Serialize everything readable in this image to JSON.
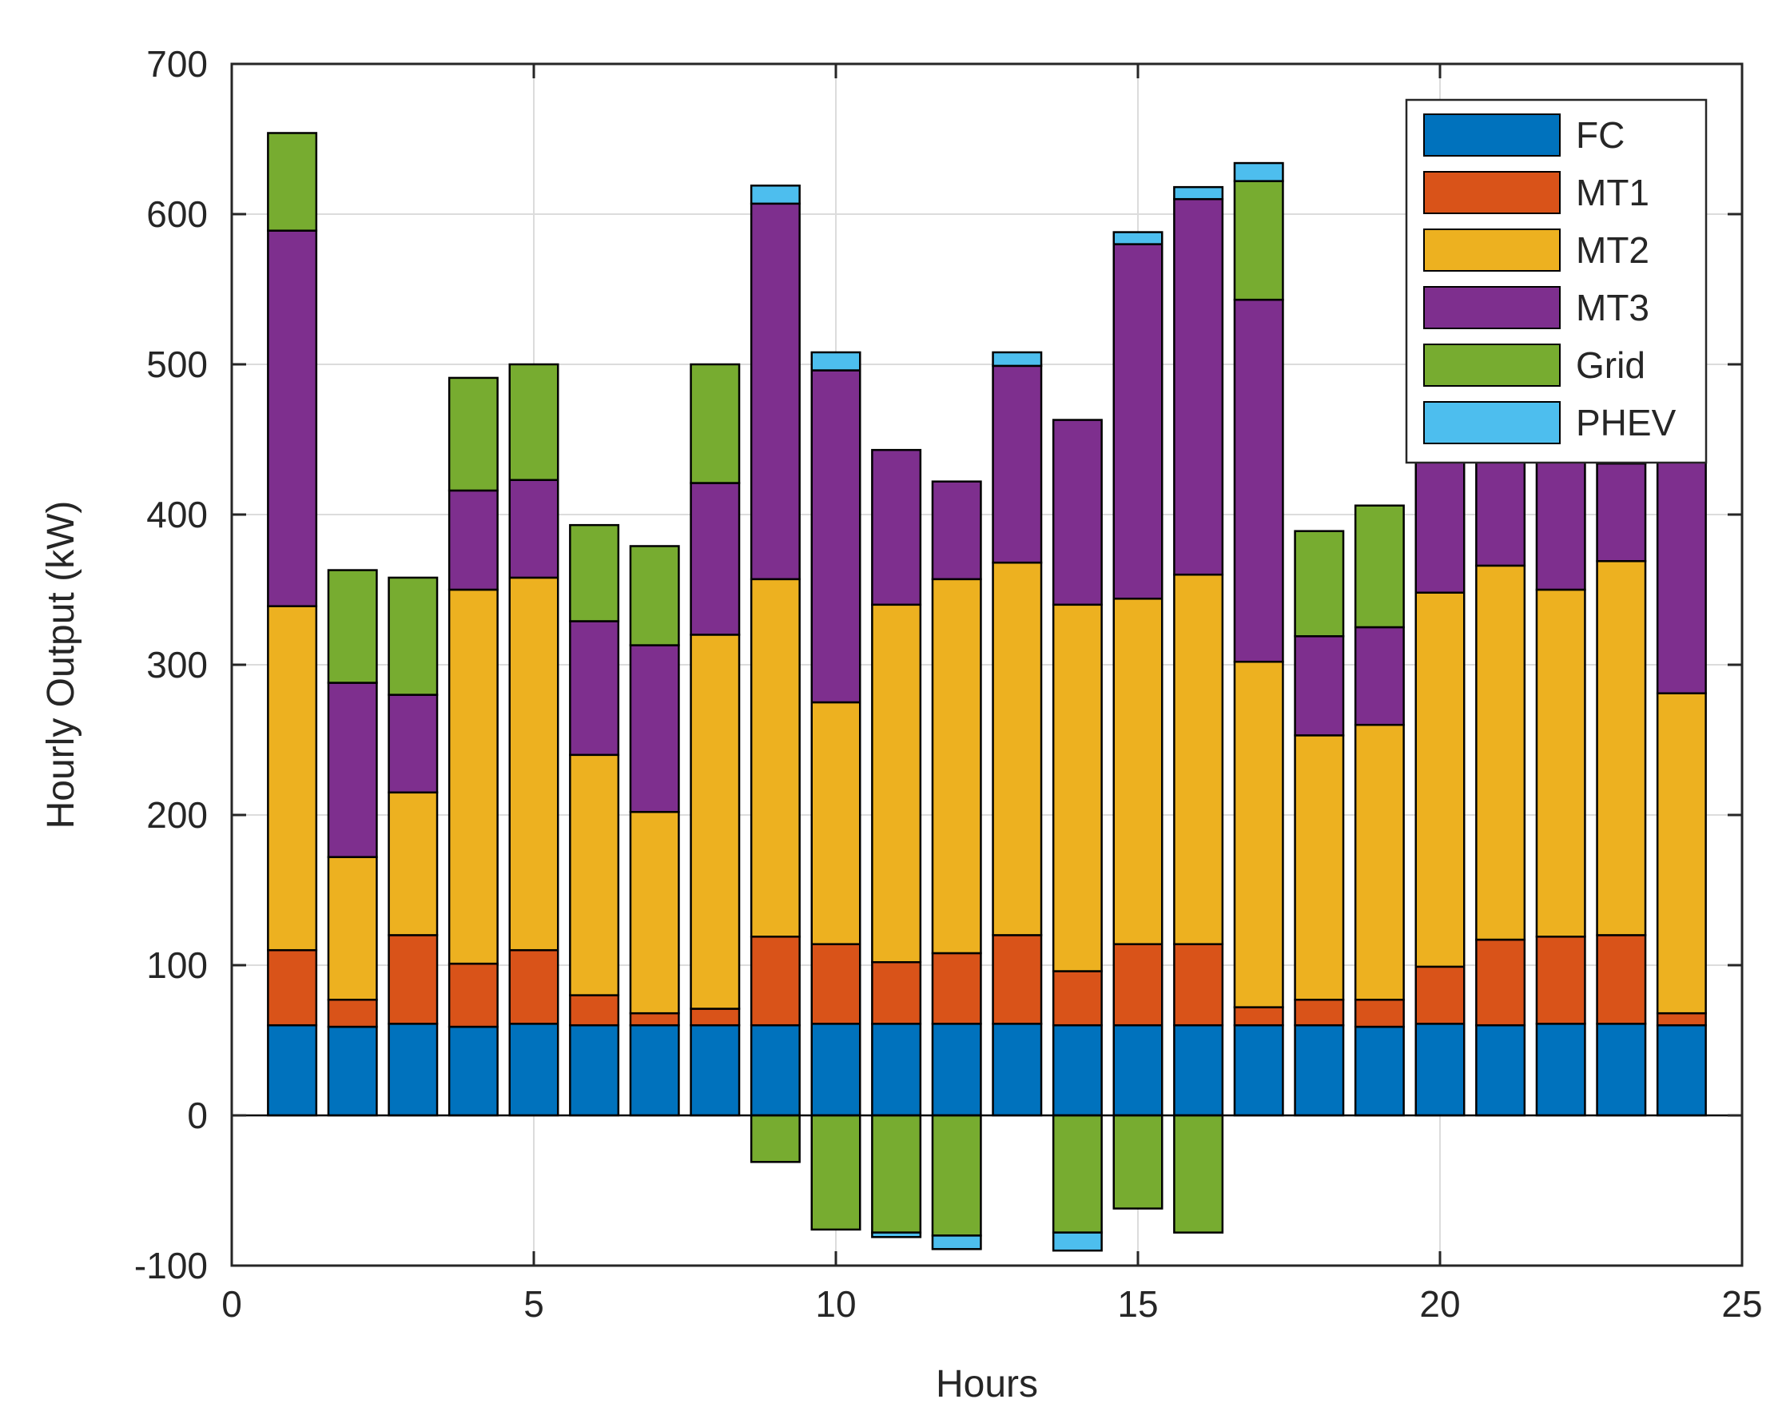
{
  "chart_data": {
    "type": "bar",
    "stacked": true,
    "xlabel": "Hours",
    "ylabel": "Hourly Output (kW)",
    "xlim": [
      0,
      25
    ],
    "ylim": [
      -100,
      700
    ],
    "xticks": [
      0,
      5,
      10,
      15,
      20,
      25
    ],
    "yticks": [
      -100,
      0,
      100,
      200,
      300,
      400,
      500,
      600,
      700
    ],
    "grid": true,
    "legend_position": "top-right",
    "categories": [
      1,
      2,
      3,
      4,
      5,
      6,
      7,
      8,
      9,
      10,
      11,
      12,
      13,
      14,
      15,
      16,
      17,
      18,
      19,
      20,
      21,
      22,
      23,
      24
    ],
    "series": [
      {
        "name": "FC",
        "color": "#0072BD",
        "values": [
          60,
          59,
          61,
          59,
          61,
          60,
          60,
          60,
          60,
          61,
          61,
          61,
          61,
          60,
          60,
          60,
          60,
          60,
          59,
          61,
          60,
          61,
          61,
          60
        ]
      },
      {
        "name": "MT1",
        "color": "#D95319",
        "values": [
          50,
          18,
          59,
          42,
          49,
          20,
          8,
          11,
          59,
          53,
          41,
          47,
          59,
          36,
          54,
          54,
          12,
          17,
          18,
          38,
          57,
          58,
          59,
          8
        ]
      },
      {
        "name": "MT2",
        "color": "#EDB120",
        "values": [
          229,
          95,
          95,
          249,
          248,
          160,
          134,
          249,
          238,
          161,
          238,
          249,
          248,
          244,
          230,
          246,
          230,
          176,
          183,
          249,
          249,
          231,
          249,
          213
        ]
      },
      {
        "name": "MT3",
        "color": "#7E2F8E",
        "values": [
          250,
          116,
          65,
          66,
          65,
          89,
          111,
          101,
          250,
          221,
          103,
          65,
          131,
          123,
          236,
          250,
          241,
          66,
          65,
          181,
          208,
          233,
          65,
          253
        ]
      },
      {
        "name": "Grid",
        "color": "#77AC30",
        "values": [
          65,
          75,
          78,
          75,
          77,
          64,
          66,
          79,
          -31,
          -76,
          -78,
          -80,
          0,
          -78,
          -62,
          -78,
          79,
          70,
          81,
          0,
          0,
          0,
          5,
          0
        ]
      },
      {
        "name": "PHEV",
        "color": "#4DBEEE",
        "values": [
          0,
          0,
          0,
          0,
          0,
          0,
          0,
          0,
          12,
          12,
          -3,
          -9,
          9,
          -12,
          8,
          8,
          12,
          0,
          0,
          0,
          0,
          0,
          0,
          0
        ]
      }
    ],
    "note_values": "kW per source per hour, read from axis gridlines"
  }
}
